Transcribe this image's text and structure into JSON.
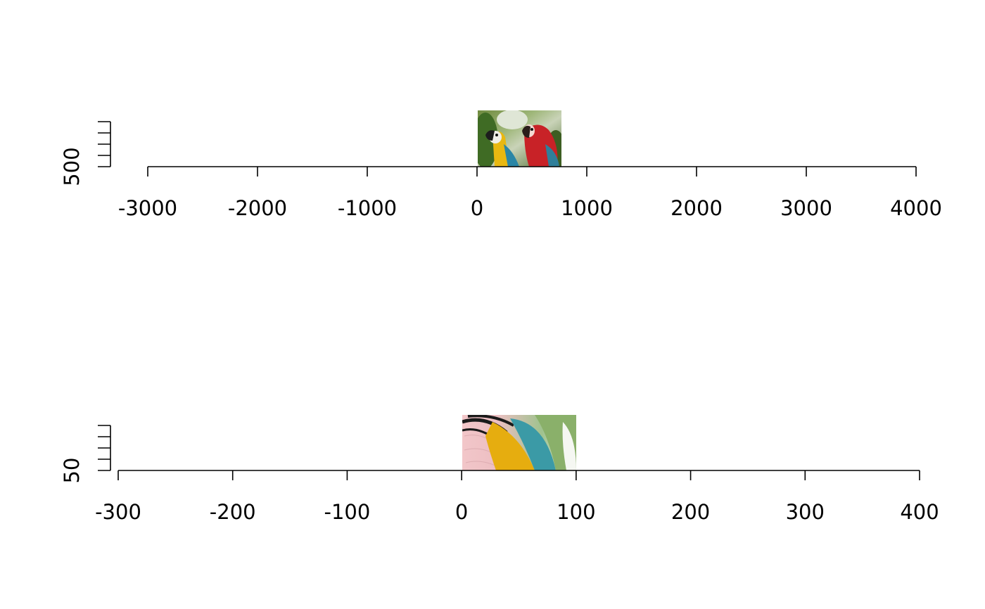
{
  "chart_data": [
    {
      "type": "image-raster",
      "image": "parrots",
      "x_ticks": [
        -3000,
        -2000,
        -1000,
        0,
        1000,
        2000,
        3000,
        4000
      ],
      "x_tick_labels": [
        "-3000",
        "-2000",
        "-1000",
        "0",
        "1000",
        "2000",
        "3000",
        "4000"
      ],
      "xlim": [
        -3000,
        4000
      ],
      "y_ticks": [
        500
      ],
      "y_tick_labels": [
        "500"
      ],
      "ylim": [
        0,
        512
      ],
      "image_extent": {
        "x": [
          0,
          768
        ],
        "y": [
          0,
          512
        ]
      }
    },
    {
      "type": "image-raster",
      "image": "parrots-crop",
      "x_ticks": [
        -300,
        -200,
        -100,
        0,
        100,
        200,
        300,
        400
      ],
      "x_tick_labels": [
        "-300",
        "-200",
        "-100",
        "0",
        "100",
        "200",
        "300",
        "400"
      ],
      "xlim": [
        -300,
        400
      ],
      "y_ticks": [
        50
      ],
      "y_tick_labels": [
        "50"
      ],
      "ylim": [
        0,
        50
      ],
      "image_extent": {
        "x": [
          0,
          100
        ],
        "y": [
          0,
          50
        ]
      }
    }
  ]
}
